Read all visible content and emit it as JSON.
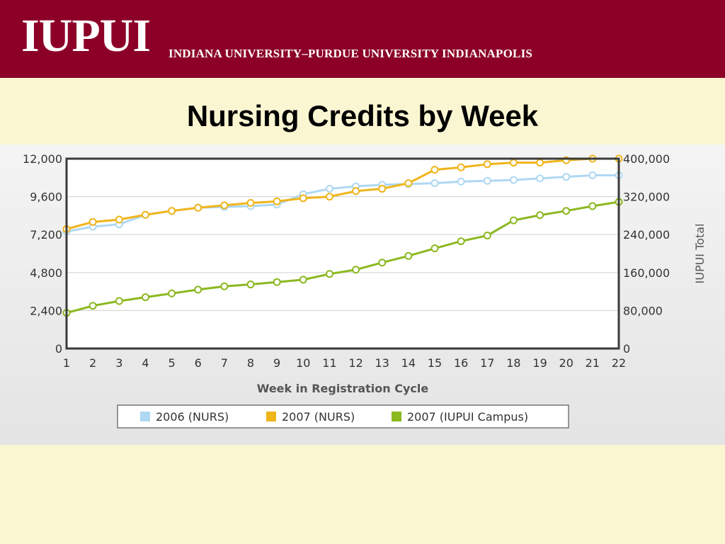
{
  "header": {
    "logo_text": "IUPUI",
    "tagline": "INDIANA UNIVERSITY–PURDUE UNIVERSITY INDIANAPOLIS",
    "banner_color": "#8c0027"
  },
  "slide": {
    "title": "Nursing Credits by Week"
  },
  "chart_data": {
    "type": "line",
    "title": "Nursing Credits by Week",
    "xlabel": "Week in Registration Cycle",
    "ylabel": "",
    "y2label": "IUPUI Total",
    "x": [
      1,
      2,
      3,
      4,
      5,
      6,
      7,
      8,
      9,
      10,
      11,
      12,
      13,
      14,
      15,
      16,
      17,
      18,
      19,
      20,
      21,
      22
    ],
    "x_tick_labels": [
      "1",
      "2",
      "3",
      "4",
      "5",
      "6",
      "7",
      "8",
      "9",
      "10",
      "11",
      "12",
      "13",
      "14",
      "15",
      "16",
      "17",
      "18",
      "19",
      "20",
      "21",
      "22"
    ],
    "ylim": [
      0,
      12000
    ],
    "y_ticks": [
      0,
      2400,
      4800,
      7200,
      9600,
      12000
    ],
    "y_tick_labels": [
      "0",
      "2,400",
      "4,800",
      "7,200",
      "9,600",
      "12,000"
    ],
    "y2lim": [
      0,
      400000
    ],
    "y2_ticks": [
      0,
      80000,
      160000,
      240000,
      320000,
      400000
    ],
    "y2_tick_labels": [
      "0",
      "80,000",
      "160,000",
      "240,000",
      "320,000",
      "400,000"
    ],
    "grid": true,
    "legend_position": "bottom",
    "series": [
      {
        "name": "2006 (NURS)",
        "axis": "left",
        "color": "#aed8f2",
        "values": [
          7400,
          7700,
          7850,
          8450,
          8700,
          8900,
          8950,
          9000,
          9100,
          9750,
          10100,
          10250,
          10350,
          10400,
          10450,
          10550,
          10600,
          10650,
          10750,
          10850,
          10950,
          10950
        ]
      },
      {
        "name": "2007 (NURS)",
        "axis": "left",
        "color": "#f0b51b",
        "values": [
          7550,
          8000,
          8150,
          8450,
          8700,
          8900,
          9050,
          9200,
          9300,
          9500,
          9600,
          9950,
          10100,
          10450,
          11300,
          11450,
          11650,
          11750,
          11750,
          11900,
          12000,
          12000
        ]
      },
      {
        "name": "2007 (IUPUI Campus)",
        "axis": "right",
        "color": "#8cb820",
        "values": [
          75000,
          90000,
          100000,
          108000,
          116000,
          124000,
          131000,
          135000,
          140000,
          145000,
          157000,
          166000,
          181000,
          195000,
          211000,
          226000,
          238000,
          270000,
          281000,
          290000,
          300000,
          309000
        ]
      }
    ]
  }
}
